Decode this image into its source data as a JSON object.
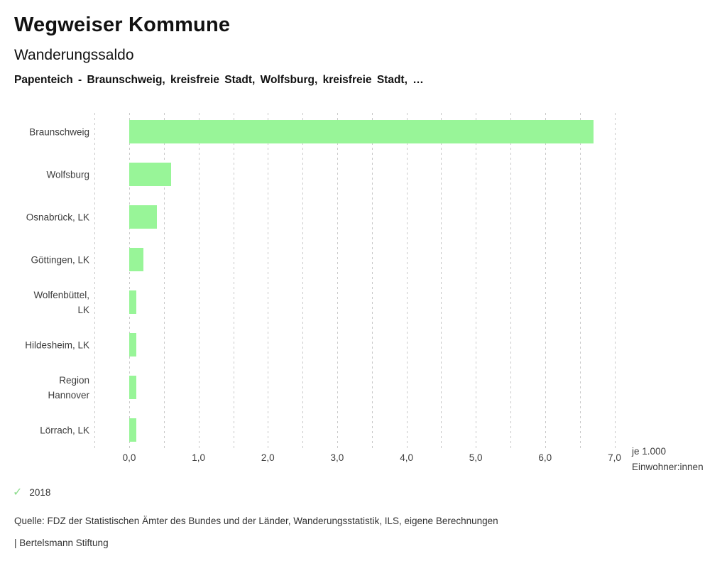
{
  "header": {
    "app_title": "Wegweiser Kommune",
    "chart_title": "Wanderungssaldo",
    "context": "Papenteich - Braunschweig, kreisfreie Stadt, Wolfsburg, kreisfreie Stadt, …"
  },
  "chart_data": {
    "type": "bar",
    "orientation": "horizontal",
    "title": "Wanderungssaldo",
    "categories": [
      "Braunschweig",
      "Wolfsburg",
      "Osnabrück, LK",
      "Göttingen, LK",
      "Wolfenbüttel, LK",
      "Hildesheim, LK",
      "Region Hannover",
      "Lörrach, LK"
    ],
    "category_display": [
      "Braunschweig",
      "Wolfsburg",
      "Osnabrück, LK",
      "Göttingen, LK",
      "Wolfenbüttel,\nLK",
      "Hildesheim, LK",
      "Region\nHannover",
      "Lörrach, LK"
    ],
    "values": [
      6.7,
      0.6,
      0.4,
      0.2,
      0.1,
      0.1,
      0.1,
      0.1
    ],
    "x_ticks": [
      "0,0",
      "1,0",
      "2,0",
      "3,0",
      "4,0",
      "5,0",
      "6,0",
      "7,0"
    ],
    "xlim": [
      -0.5,
      7.0
    ],
    "grid_step": 0.5,
    "grid": "dashed-vertical",
    "unit_label": "je 1.000\nEinwohner:innen",
    "bar_color": "#98f598",
    "legend": [
      "2018"
    ]
  },
  "legend": {
    "check_icon": "✓",
    "check_color": "#8cdc8c",
    "year": "2018"
  },
  "footer": {
    "source": "Quelle: FDZ der Statistischen Ämter des Bundes und der Länder, Wanderungsstatistik, ILS, eigene Berechnungen",
    "brand": "| Bertelsmann Stiftung"
  }
}
